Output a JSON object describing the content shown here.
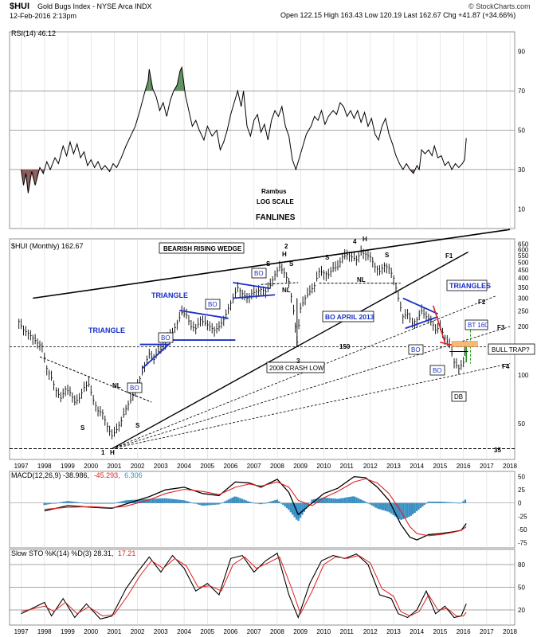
{
  "header": {
    "title_symbol": "$HUI",
    "title_name": "Gold Bugs Index - NYSE Arca INDX",
    "date": "12-Feb-2016 2:13pm",
    "quote": "Open 122.15  High 163.43  Low 120.19  Last 162.67  Chg +41.87 (+34.66%)",
    "watermark": "© StockCharts.com",
    "chg_color": "#1f9a1f"
  },
  "rsi": {
    "legend": "RSI(14) 46.12",
    "ticks": [
      "90",
      "70",
      "50",
      "30",
      "10"
    ],
    "tick_values": [
      90,
      70,
      50,
      30,
      10
    ],
    "levels": [
      70,
      50,
      30
    ],
    "overbought_color": "#5f8f5f",
    "oversold_color": "#8a5a5a",
    "series": [
      [
        1997.0,
        30
      ],
      [
        1997.1,
        22
      ],
      [
        1997.2,
        28
      ],
      [
        1997.3,
        18
      ],
      [
        1997.45,
        29
      ],
      [
        1997.6,
        22
      ],
      [
        1997.8,
        31
      ],
      [
        1997.95,
        28
      ],
      [
        1998.1,
        34
      ],
      [
        1998.25,
        30
      ],
      [
        1998.45,
        36
      ],
      [
        1998.6,
        33
      ],
      [
        1998.8,
        42
      ],
      [
        1998.95,
        37
      ],
      [
        1999.1,
        44
      ],
      [
        1999.25,
        38
      ],
      [
        1999.4,
        43
      ],
      [
        1999.55,
        36
      ],
      [
        1999.7,
        39
      ],
      [
        1999.85,
        32
      ],
      [
        2000.0,
        35
      ],
      [
        2000.15,
        31
      ],
      [
        2000.3,
        34
      ],
      [
        2000.45,
        30
      ],
      [
        2000.6,
        32
      ],
      [
        2000.8,
        29
      ],
      [
        2000.95,
        33
      ],
      [
        2001.1,
        31
      ],
      [
        2001.3,
        36
      ],
      [
        2001.5,
        42
      ],
      [
        2001.7,
        47
      ],
      [
        2001.9,
        52
      ],
      [
        2002.1,
        60
      ],
      [
        2002.3,
        69
      ],
      [
        2002.45,
        75
      ],
      [
        2002.5,
        81
      ],
      [
        2002.65,
        71
      ],
      [
        2002.8,
        67
      ],
      [
        2002.95,
        60
      ],
      [
        2003.1,
        64
      ],
      [
        2003.25,
        57
      ],
      [
        2003.4,
        65
      ],
      [
        2003.55,
        70
      ],
      [
        2003.7,
        73
      ],
      [
        2003.82,
        80
      ],
      [
        2003.9,
        82
      ],
      [
        2004.05,
        68
      ],
      [
        2004.2,
        60
      ],
      [
        2004.35,
        52
      ],
      [
        2004.5,
        55
      ],
      [
        2004.65,
        50
      ],
      [
        2004.85,
        45
      ],
      [
        2005.0,
        52
      ],
      [
        2005.2,
        47
      ],
      [
        2005.4,
        50
      ],
      [
        2005.55,
        40
      ],
      [
        2005.7,
        44
      ],
      [
        2005.85,
        50
      ],
      [
        2006.0,
        58
      ],
      [
        2006.15,
        64
      ],
      [
        2006.3,
        70
      ],
      [
        2006.45,
        62
      ],
      [
        2006.55,
        70
      ],
      [
        2006.7,
        52
      ],
      [
        2006.85,
        47
      ],
      [
        2007.0,
        55
      ],
      [
        2007.15,
        58
      ],
      [
        2007.3,
        49
      ],
      [
        2007.45,
        53
      ],
      [
        2007.6,
        45
      ],
      [
        2007.75,
        55
      ],
      [
        2007.9,
        60
      ],
      [
        2008.05,
        57
      ],
      [
        2008.2,
        62
      ],
      [
        2008.35,
        52
      ],
      [
        2008.5,
        47
      ],
      [
        2008.65,
        35
      ],
      [
        2008.8,
        30
      ],
      [
        2008.95,
        36
      ],
      [
        2009.1,
        42
      ],
      [
        2009.25,
        48
      ],
      [
        2009.45,
        52
      ],
      [
        2009.6,
        57
      ],
      [
        2009.75,
        55
      ],
      [
        2009.9,
        60
      ],
      [
        2010.05,
        53
      ],
      [
        2010.2,
        57
      ],
      [
        2010.4,
        60
      ],
      [
        2010.55,
        58
      ],
      [
        2010.7,
        64
      ],
      [
        2010.85,
        62
      ],
      [
        2011.0,
        57
      ],
      [
        2011.15,
        60
      ],
      [
        2011.3,
        56
      ],
      [
        2011.45,
        60
      ],
      [
        2011.6,
        54
      ],
      [
        2011.75,
        59
      ],
      [
        2011.9,
        52
      ],
      [
        2012.05,
        56
      ],
      [
        2012.2,
        48
      ],
      [
        2012.35,
        45
      ],
      [
        2012.5,
        52
      ],
      [
        2012.65,
        56
      ],
      [
        2012.8,
        48
      ],
      [
        2012.95,
        43
      ],
      [
        2013.1,
        37
      ],
      [
        2013.25,
        33
      ],
      [
        2013.4,
        30
      ],
      [
        2013.55,
        33
      ],
      [
        2013.7,
        30
      ],
      [
        2013.85,
        28
      ],
      [
        2014.0,
        32
      ],
      [
        2014.1,
        30
      ],
      [
        2014.2,
        40
      ],
      [
        2014.35,
        38
      ],
      [
        2014.5,
        40
      ],
      [
        2014.65,
        37
      ],
      [
        2014.75,
        42
      ],
      [
        2014.9,
        36
      ],
      [
        2015.05,
        37
      ],
      [
        2015.2,
        32
      ],
      [
        2015.35,
        34
      ],
      [
        2015.5,
        30
      ],
      [
        2015.65,
        33
      ],
      [
        2015.8,
        31
      ],
      [
        2015.95,
        33
      ],
      [
        2016.05,
        35
      ],
      [
        2016.12,
        46
      ]
    ]
  },
  "annotations": {
    "rambus": "Rambus",
    "log_scale": "LOG SCALE",
    "fanlines": "FANLINES"
  },
  "price": {
    "legend": "$HUI (Monthly) 162.67",
    "ticks": [
      "650",
      "600",
      "550",
      "500",
      "450",
      "400",
      "350",
      "300",
      "250",
      "200",
      "150",
      "100",
      "50"
    ],
    "tick_values": [
      650,
      600,
      550,
      500,
      450,
      400,
      350,
      300,
      250,
      200,
      150,
      100,
      50
    ],
    "labels": {
      "bearish_wedge": "BEARISH RISING WEDGE",
      "triangle1": "TRIANGLE",
      "triangle2": "TRIANGLE",
      "triangles": "TRIANGLES",
      "bo_april": "BO APRIL 2013",
      "crash_low": "2008 CRASH LOW",
      "bull_trap": "BULL TRAP?",
      "bt160": "BT 160",
      "db": "DB",
      "bo": "BO",
      "nl": "NL",
      "s": "S",
      "h": "H",
      "n1": "1",
      "n2": "2",
      "n3": "3",
      "n4": "4",
      "f1": "F1",
      "f2": "F2",
      "f3": "F3",
      "f4": "F4",
      "lvl150": "150",
      "lvl35": "35"
    },
    "series": [
      [
        1996.9,
        215
      ],
      [
        1997.1,
        190
      ],
      [
        1997.3,
        182
      ],
      [
        1997.5,
        170
      ],
      [
        1997.7,
        158
      ],
      [
        1997.9,
        150
      ],
      [
        1998.1,
        110
      ],
      [
        1998.3,
        96
      ],
      [
        1998.5,
        80
      ],
      [
        1998.7,
        72
      ],
      [
        1998.9,
        82
      ],
      [
        1999.1,
        78
      ],
      [
        1999.3,
        68
      ],
      [
        1999.5,
        72
      ],
      [
        1999.7,
        84
      ],
      [
        1999.9,
        88
      ],
      [
        2000.1,
        70
      ],
      [
        2000.3,
        60
      ],
      [
        2000.5,
        58
      ],
      [
        2000.7,
        48
      ],
      [
        2000.9,
        42
      ],
      [
        2001.1,
        46
      ],
      [
        2001.3,
        52
      ],
      [
        2001.5,
        62
      ],
      [
        2001.7,
        70
      ],
      [
        2001.9,
        80
      ],
      [
        2002.1,
        95
      ],
      [
        2002.3,
        115
      ],
      [
        2002.5,
        135
      ],
      [
        2002.7,
        125
      ],
      [
        2002.9,
        140
      ],
      [
        2003.1,
        150
      ],
      [
        2003.3,
        170
      ],
      [
        2003.5,
        185
      ],
      [
        2003.7,
        210
      ],
      [
        2003.9,
        245
      ],
      [
        2004.1,
        235
      ],
      [
        2004.3,
        200
      ],
      [
        2004.5,
        195
      ],
      [
        2004.7,
        220
      ],
      [
        2004.9,
        210
      ],
      [
        2005.1,
        200
      ],
      [
        2005.3,
        190
      ],
      [
        2005.5,
        200
      ],
      [
        2005.7,
        220
      ],
      [
        2005.9,
        260
      ],
      [
        2006.1,
        300
      ],
      [
        2006.3,
        350
      ],
      [
        2006.5,
        320
      ],
      [
        2006.7,
        300
      ],
      [
        2006.9,
        320
      ],
      [
        2007.1,
        330
      ],
      [
        2007.3,
        340
      ],
      [
        2007.5,
        330
      ],
      [
        2007.7,
        360
      ],
      [
        2007.9,
        420
      ],
      [
        2008.1,
        470
      ],
      [
        2008.3,
        430
      ],
      [
        2008.5,
        380
      ],
      [
        2008.7,
        250
      ],
      [
        2008.85,
        160
      ],
      [
        2009.0,
        260
      ],
      [
        2009.2,
        300
      ],
      [
        2009.4,
        330
      ],
      [
        2009.6,
        360
      ],
      [
        2009.8,
        440
      ],
      [
        2010.0,
        430
      ],
      [
        2010.2,
        420
      ],
      [
        2010.4,
        460
      ],
      [
        2010.6,
        470
      ],
      [
        2010.8,
        540
      ],
      [
        2011.0,
        560
      ],
      [
        2011.2,
        540
      ],
      [
        2011.4,
        520
      ],
      [
        2011.6,
        580
      ],
      [
        2011.8,
        560
      ],
      [
        2012.0,
        540
      ],
      [
        2012.2,
        470
      ],
      [
        2012.4,
        440
      ],
      [
        2012.6,
        480
      ],
      [
        2012.8,
        460
      ],
      [
        2013.0,
        400
      ],
      [
        2013.2,
        300
      ],
      [
        2013.4,
        230
      ],
      [
        2013.6,
        240
      ],
      [
        2013.8,
        210
      ],
      [
        2014.0,
        220
      ],
      [
        2014.2,
        250
      ],
      [
        2014.4,
        230
      ],
      [
        2014.6,
        220
      ],
      [
        2014.8,
        190
      ],
      [
        2015.0,
        200
      ],
      [
        2015.2,
        170
      ],
      [
        2015.4,
        155
      ],
      [
        2015.6,
        120
      ],
      [
        2015.8,
        110
      ],
      [
        2016.0,
        120
      ],
      [
        2016.12,
        162.67
      ]
    ]
  },
  "macd": {
    "legend_main": "MACD(12,26,9) -38.986,",
    "legend_signal": "-45.293,",
    "legend_hist": "6.306",
    "signal_color": "#e02020",
    "hist_color": "#3a8fc4",
    "ticks": [
      "50",
      "25",
      "0",
      "-25",
      "-50",
      "-75"
    ],
    "tick_values": [
      50,
      25,
      0,
      -25,
      -50,
      -75
    ],
    "macd_series": [
      [
        1998.0,
        -15
      ],
      [
        1999.0,
        -5
      ],
      [
        2000.0,
        -8
      ],
      [
        2000.9,
        -10
      ],
      [
        2001.5,
        -2
      ],
      [
        2002.5,
        12
      ],
      [
        2003.2,
        25
      ],
      [
        2004.0,
        30
      ],
      [
        2004.8,
        18
      ],
      [
        2005.5,
        14
      ],
      [
        2006.2,
        40
      ],
      [
        2006.8,
        38
      ],
      [
        2007.3,
        30
      ],
      [
        2008.0,
        45
      ],
      [
        2008.5,
        20
      ],
      [
        2008.9,
        -22
      ],
      [
        2009.5,
        0
      ],
      [
        2010.0,
        18
      ],
      [
        2010.6,
        28
      ],
      [
        2011.3,
        50
      ],
      [
        2011.8,
        48
      ],
      [
        2012.3,
        30
      ],
      [
        2012.8,
        5
      ],
      [
        2013.3,
        -40
      ],
      [
        2013.7,
        -65
      ],
      [
        2014.0,
        -70
      ],
      [
        2014.5,
        -60
      ],
      [
        2015.0,
        -58
      ],
      [
        2015.5,
        -55
      ],
      [
        2015.9,
        -52
      ],
      [
        2016.12,
        -39
      ]
    ],
    "signal_series": [
      [
        1998.0,
        -12
      ],
      [
        1999.0,
        -8
      ],
      [
        2000.0,
        -7
      ],
      [
        2000.9,
        -9
      ],
      [
        2001.5,
        -6
      ],
      [
        2002.5,
        6
      ],
      [
        2003.2,
        18
      ],
      [
        2004.0,
        26
      ],
      [
        2004.8,
        22
      ],
      [
        2005.5,
        16
      ],
      [
        2006.2,
        30
      ],
      [
        2006.8,
        36
      ],
      [
        2007.3,
        32
      ],
      [
        2008.0,
        40
      ],
      [
        2008.5,
        30
      ],
      [
        2008.9,
        5
      ],
      [
        2009.5,
        -5
      ],
      [
        2010.0,
        10
      ],
      [
        2010.6,
        22
      ],
      [
        2011.3,
        40
      ],
      [
        2011.8,
        46
      ],
      [
        2012.3,
        38
      ],
      [
        2012.8,
        18
      ],
      [
        2013.3,
        -15
      ],
      [
        2013.7,
        -45
      ],
      [
        2014.0,
        -58
      ],
      [
        2014.5,
        -62
      ],
      [
        2015.0,
        -60
      ],
      [
        2015.5,
        -56
      ],
      [
        2015.9,
        -52
      ],
      [
        2016.12,
        -45
      ]
    ]
  },
  "sto": {
    "legend_main": "Slow STO %K(14) %D(3) 28.31,",
    "legend_d": "17.21",
    "d_color": "#e02020",
    "ticks": [
      "80",
      "50",
      "20"
    ],
    "tick_values": [
      80,
      50,
      20
    ],
    "levels": [
      80,
      50,
      20
    ],
    "k_series": [
      [
        1997.0,
        15
      ],
      [
        1998.0,
        30
      ],
      [
        1998.3,
        12
      ],
      [
        1998.8,
        35
      ],
      [
        1999.3,
        10
      ],
      [
        1999.8,
        28
      ],
      [
        2000.4,
        8
      ],
      [
        2000.9,
        12
      ],
      [
        2001.5,
        48
      ],
      [
        2002.0,
        70
      ],
      [
        2002.5,
        90
      ],
      [
        2003.0,
        70
      ],
      [
        2003.5,
        92
      ],
      [
        2004.0,
        75
      ],
      [
        2004.5,
        45
      ],
      [
        2005.0,
        55
      ],
      [
        2005.5,
        40
      ],
      [
        2006.0,
        88
      ],
      [
        2006.5,
        92
      ],
      [
        2007.0,
        70
      ],
      [
        2007.5,
        85
      ],
      [
        2008.0,
        95
      ],
      [
        2008.5,
        40
      ],
      [
        2008.9,
        10
      ],
      [
        2009.4,
        55
      ],
      [
        2009.9,
        85
      ],
      [
        2010.4,
        92
      ],
      [
        2010.9,
        88
      ],
      [
        2011.4,
        94
      ],
      [
        2011.9,
        80
      ],
      [
        2012.4,
        40
      ],
      [
        2012.9,
        35
      ],
      [
        2013.2,
        15
      ],
      [
        2013.6,
        10
      ],
      [
        2014.0,
        20
      ],
      [
        2014.4,
        45
      ],
      [
        2014.8,
        15
      ],
      [
        2015.2,
        25
      ],
      [
        2015.6,
        10
      ],
      [
        2015.9,
        12
      ],
      [
        2016.12,
        28
      ]
    ],
    "d_series": [
      [
        1997.0,
        18
      ],
      [
        1998.0,
        25
      ],
      [
        1998.4,
        18
      ],
      [
        1998.9,
        30
      ],
      [
        1999.4,
        15
      ],
      [
        1999.9,
        24
      ],
      [
        2000.5,
        12
      ],
      [
        2001.0,
        14
      ],
      [
        2001.6,
        40
      ],
      [
        2002.1,
        65
      ],
      [
        2002.6,
        85
      ],
      [
        2003.1,
        75
      ],
      [
        2003.6,
        88
      ],
      [
        2004.1,
        78
      ],
      [
        2004.6,
        50
      ],
      [
        2005.1,
        52
      ],
      [
        2005.6,
        45
      ],
      [
        2006.1,
        80
      ],
      [
        2006.6,
        90
      ],
      [
        2007.1,
        75
      ],
      [
        2007.6,
        82
      ],
      [
        2008.1,
        90
      ],
      [
        2008.6,
        50
      ],
      [
        2009.0,
        15
      ],
      [
        2009.5,
        45
      ],
      [
        2010.0,
        80
      ],
      [
        2010.5,
        90
      ],
      [
        2011.0,
        88
      ],
      [
        2011.5,
        92
      ],
      [
        2012.0,
        82
      ],
      [
        2012.5,
        48
      ],
      [
        2013.0,
        38
      ],
      [
        2013.3,
        18
      ],
      [
        2013.7,
        12
      ],
      [
        2014.1,
        18
      ],
      [
        2014.5,
        40
      ],
      [
        2014.9,
        20
      ],
      [
        2015.3,
        22
      ],
      [
        2015.7,
        12
      ],
      [
        2016.0,
        12
      ],
      [
        2016.12,
        17
      ]
    ]
  },
  "xaxis": {
    "years": [
      "1997",
      "1998",
      "1999",
      "2000",
      "2001",
      "2002",
      "2003",
      "2004",
      "2005",
      "2006",
      "2007",
      "2008",
      "2009",
      "2010",
      "2011",
      "2012",
      "2013",
      "2014",
      "2015",
      "2016",
      "2017",
      "2018"
    ]
  }
}
